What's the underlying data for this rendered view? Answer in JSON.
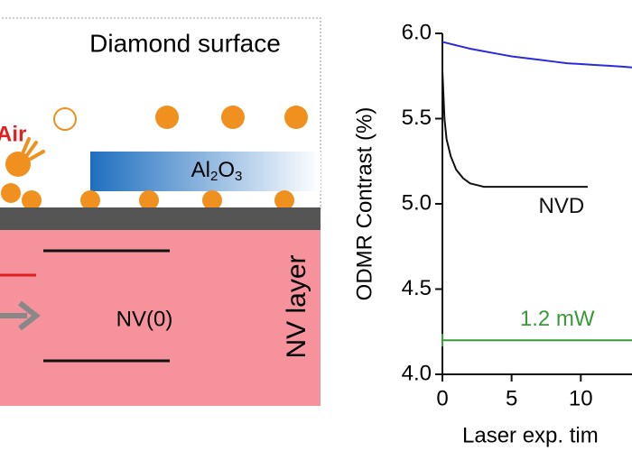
{
  "diagram": {
    "surface_label": "Diamond surface",
    "air_label": "Air",
    "film_label": "Al2O3",
    "state_label": "NV(0)",
    "layer_label": "NV layer"
  },
  "chart_data": {
    "type": "line",
    "ylabel": "ODMR Contrast (%)",
    "xlabel": "Laser exp. tim",
    "xlim": [
      0,
      13.7
    ],
    "ylim": [
      4.0,
      6.0
    ],
    "xticks": [
      0,
      5,
      10
    ],
    "yticks": [
      {
        "value": 4.0,
        "label": "4.0"
      },
      {
        "value": 4.5,
        "label": "4.5"
      },
      {
        "value": 5.0,
        "label": "5.0"
      },
      {
        "value": 5.5,
        "label": "5.5"
      },
      {
        "value": 6.0,
        "label": "6.0"
      }
    ],
    "series": [
      {
        "color": "#2b2bdc",
        "x": [
          0,
          1,
          2,
          3,
          4,
          5,
          6,
          7,
          8,
          9,
          10,
          11,
          12,
          13,
          13.7
        ],
        "values": [
          5.95,
          5.93,
          5.91,
          5.895,
          5.88,
          5.865,
          5.855,
          5.845,
          5.835,
          5.825,
          5.82,
          5.815,
          5.81,
          5.805,
          5.8
        ]
      },
      {
        "color": "#111111",
        "x": [
          0,
          0.15,
          0.3,
          0.6,
          1,
          1.5,
          2,
          2.5,
          3,
          4,
          6,
          8,
          10,
          10.5
        ],
        "values": [
          5.78,
          5.5,
          5.38,
          5.28,
          5.2,
          5.15,
          5.12,
          5.11,
          5.1,
          5.1,
          5.1,
          5.1,
          5.1,
          5.1
        ]
      }
    ],
    "annotations": [
      {
        "text": "NVD",
        "x": 8.6,
        "y": 4.98,
        "color": "#111111"
      },
      {
        "text": "1.2 mW",
        "x": 8.3,
        "y": 4.32,
        "color": "#3a9a3a"
      }
    ],
    "range": {
      "x": [
        0,
        13.7
      ],
      "y": 4.2,
      "color": "#3a9a3a"
    }
  }
}
